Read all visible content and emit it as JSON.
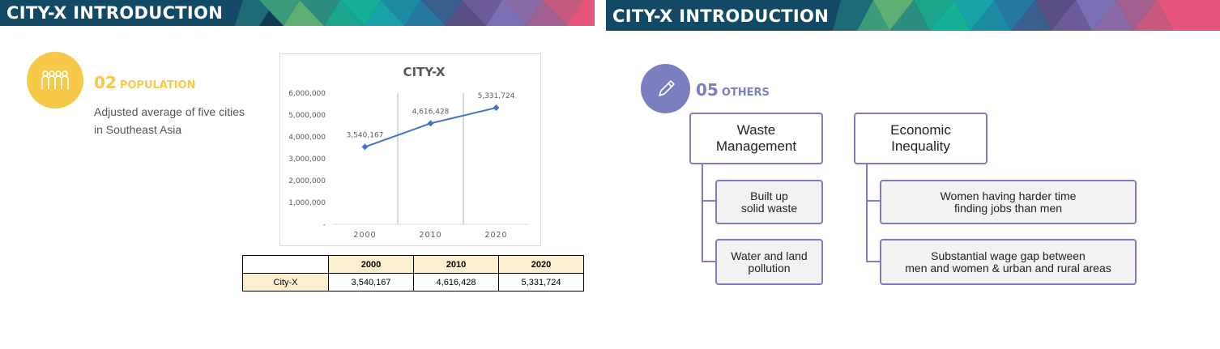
{
  "left_slide": {
    "banner_title": "CITY-X INTRODUCTION",
    "section": {
      "number": "02",
      "label": "POPULATION",
      "icon": "people-icon",
      "color": "#f7c948",
      "description": "Adjusted average of five cities\nin Southeast Asia"
    }
  },
  "chart_data": {
    "type": "line",
    "title": "CITY-X",
    "x": [
      "2000",
      "2010",
      "2020"
    ],
    "series": [
      {
        "values": [
          3540167,
          4616428,
          5331724
        ],
        "color": "#4472c4"
      }
    ],
    "data_labels": [
      "3,540,167",
      "4,616,428",
      "5,331,724"
    ],
    "y_ticks": [
      "-",
      "1,000,000",
      "2,000,000",
      "3,000,000",
      "4,000,000",
      "5,000,000",
      "6,000,000"
    ],
    "ylim": [
      0,
      6000000
    ],
    "xlabel": "",
    "ylabel": "",
    "grid": "vertical",
    "legend": "none"
  },
  "table": {
    "header": [
      "",
      "2000",
      "2010",
      "2020"
    ],
    "rows": [
      [
        "City-X",
        "3,540,167",
        "4,616,428",
        "5,331,724"
      ]
    ]
  },
  "right_slide": {
    "banner_title": "CITY-X INTRODUCTION",
    "section": {
      "number": "05",
      "label": "OTHERS",
      "icon": "pencil-icon",
      "color": "#7b7fc0"
    },
    "groups": [
      {
        "title": "Waste\nManagement",
        "items": [
          "Built up\nsolid waste",
          "Water and land\npollution"
        ]
      },
      {
        "title": "Economic\nInequality",
        "items": [
          "Women having harder time\nfinding jobs than men",
          "Substantial wage gap between\nmen and women & urban and rural areas"
        ]
      }
    ]
  }
}
